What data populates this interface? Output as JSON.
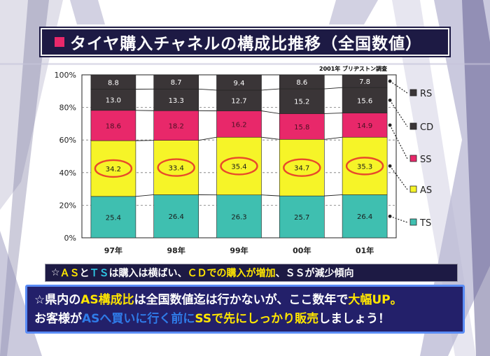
{
  "title": "タイヤ購入チャネルの構成比推移（全国数値）",
  "source_note": "2001年 ブリヂストン調査",
  "colors": {
    "TS": "#3fbfb0",
    "AS": "#f6f428",
    "SS": "#e8286a",
    "CD": "#3a3537",
    "RS": "#3a3537",
    "frame": "#1d1a44",
    "ellipse": "#e84a2a"
  },
  "chart_data": {
    "type": "bar",
    "stacked": true,
    "categories": [
      "97年",
      "98年",
      "99年",
      "00年",
      "01年"
    ],
    "series": [
      {
        "name": "TS",
        "values": [
          25.4,
          26.4,
          26.3,
          25.7,
          26.4
        ]
      },
      {
        "name": "AS",
        "values": [
          34.2,
          33.4,
          35.4,
          34.7,
          35.3
        ]
      },
      {
        "name": "SS",
        "values": [
          18.6,
          18.2,
          16.2,
          15.8,
          14.9
        ]
      },
      {
        "name": "CD",
        "values": [
          13.0,
          13.3,
          12.7,
          15.2,
          15.6
        ]
      },
      {
        "name": "RS",
        "values": [
          8.8,
          8.7,
          9.4,
          8.6,
          7.8
        ]
      }
    ],
    "yticks": [
      "0%",
      "20%",
      "40%",
      "60%",
      "80%",
      "100%"
    ],
    "ylim": [
      0,
      100
    ],
    "legend": [
      "RS",
      "CD",
      "SS",
      "AS",
      "TS"
    ],
    "legend_position": "right",
    "highlight_series": "AS"
  },
  "band1": {
    "prefix": "☆",
    "p1": "ＡＳ",
    "p2": "と",
    "p3": "ＴＳ",
    "p4": "は購入は横ばい、",
    "p5": "ＣＤでの購入が増加",
    "p6": "、ＳＳが減少傾向"
  },
  "band2": {
    "l1a": "☆県内の",
    "l1b": "AS構成比",
    "l1c": "は",
    "l1d": "全国数値迄は行かないが、ここ数年で",
    "l1e": "大幅UP。",
    "l2a": "お客様が",
    "l2b": "ASへ買いに行く前に",
    "l2c": "SSで先にしっかり販売",
    "l2d": "しましょう！"
  }
}
